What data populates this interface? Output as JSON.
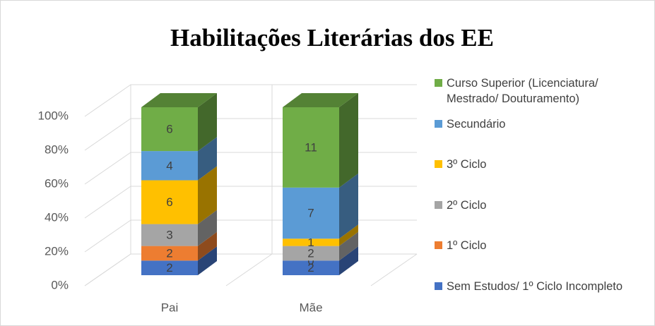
{
  "chart_data": {
    "type": "bar3d_stacked_percent",
    "title": "Habilitações Literárias dos EE",
    "categories": [
      "Pai",
      "Mãe"
    ],
    "series": [
      {
        "name": "Sem Estudos/ 1º Ciclo Incompleto",
        "color": "#4472c4",
        "values": [
          2,
          2
        ]
      },
      {
        "name": "1º Ciclo",
        "color": "#ed7d31",
        "values": [
          2,
          0
        ]
      },
      {
        "name": "2º Ciclo",
        "color": "#a5a5a5",
        "values": [
          3,
          2
        ]
      },
      {
        "name": "3º Ciclo",
        "color": "#ffc000",
        "values": [
          6,
          1
        ]
      },
      {
        "name": "Secundário",
        "color": "#5b9bd5",
        "values": [
          4,
          7
        ]
      },
      {
        "name": "Curso Superior (Licenciatura/ Mestrado/ Douturamento)",
        "color": "#70ad47",
        "values": [
          6,
          11
        ]
      }
    ],
    "ylim": [
      0,
      100
    ],
    "yticks": [
      {
        "value": 0,
        "label": "0%"
      },
      {
        "value": 20,
        "label": "20%"
      },
      {
        "value": 40,
        "label": "40%"
      },
      {
        "value": 60,
        "label": "60%"
      },
      {
        "value": 80,
        "label": "80%"
      },
      {
        "value": 100,
        "label": "100%"
      }
    ],
    "grid": true,
    "legend": "right"
  }
}
